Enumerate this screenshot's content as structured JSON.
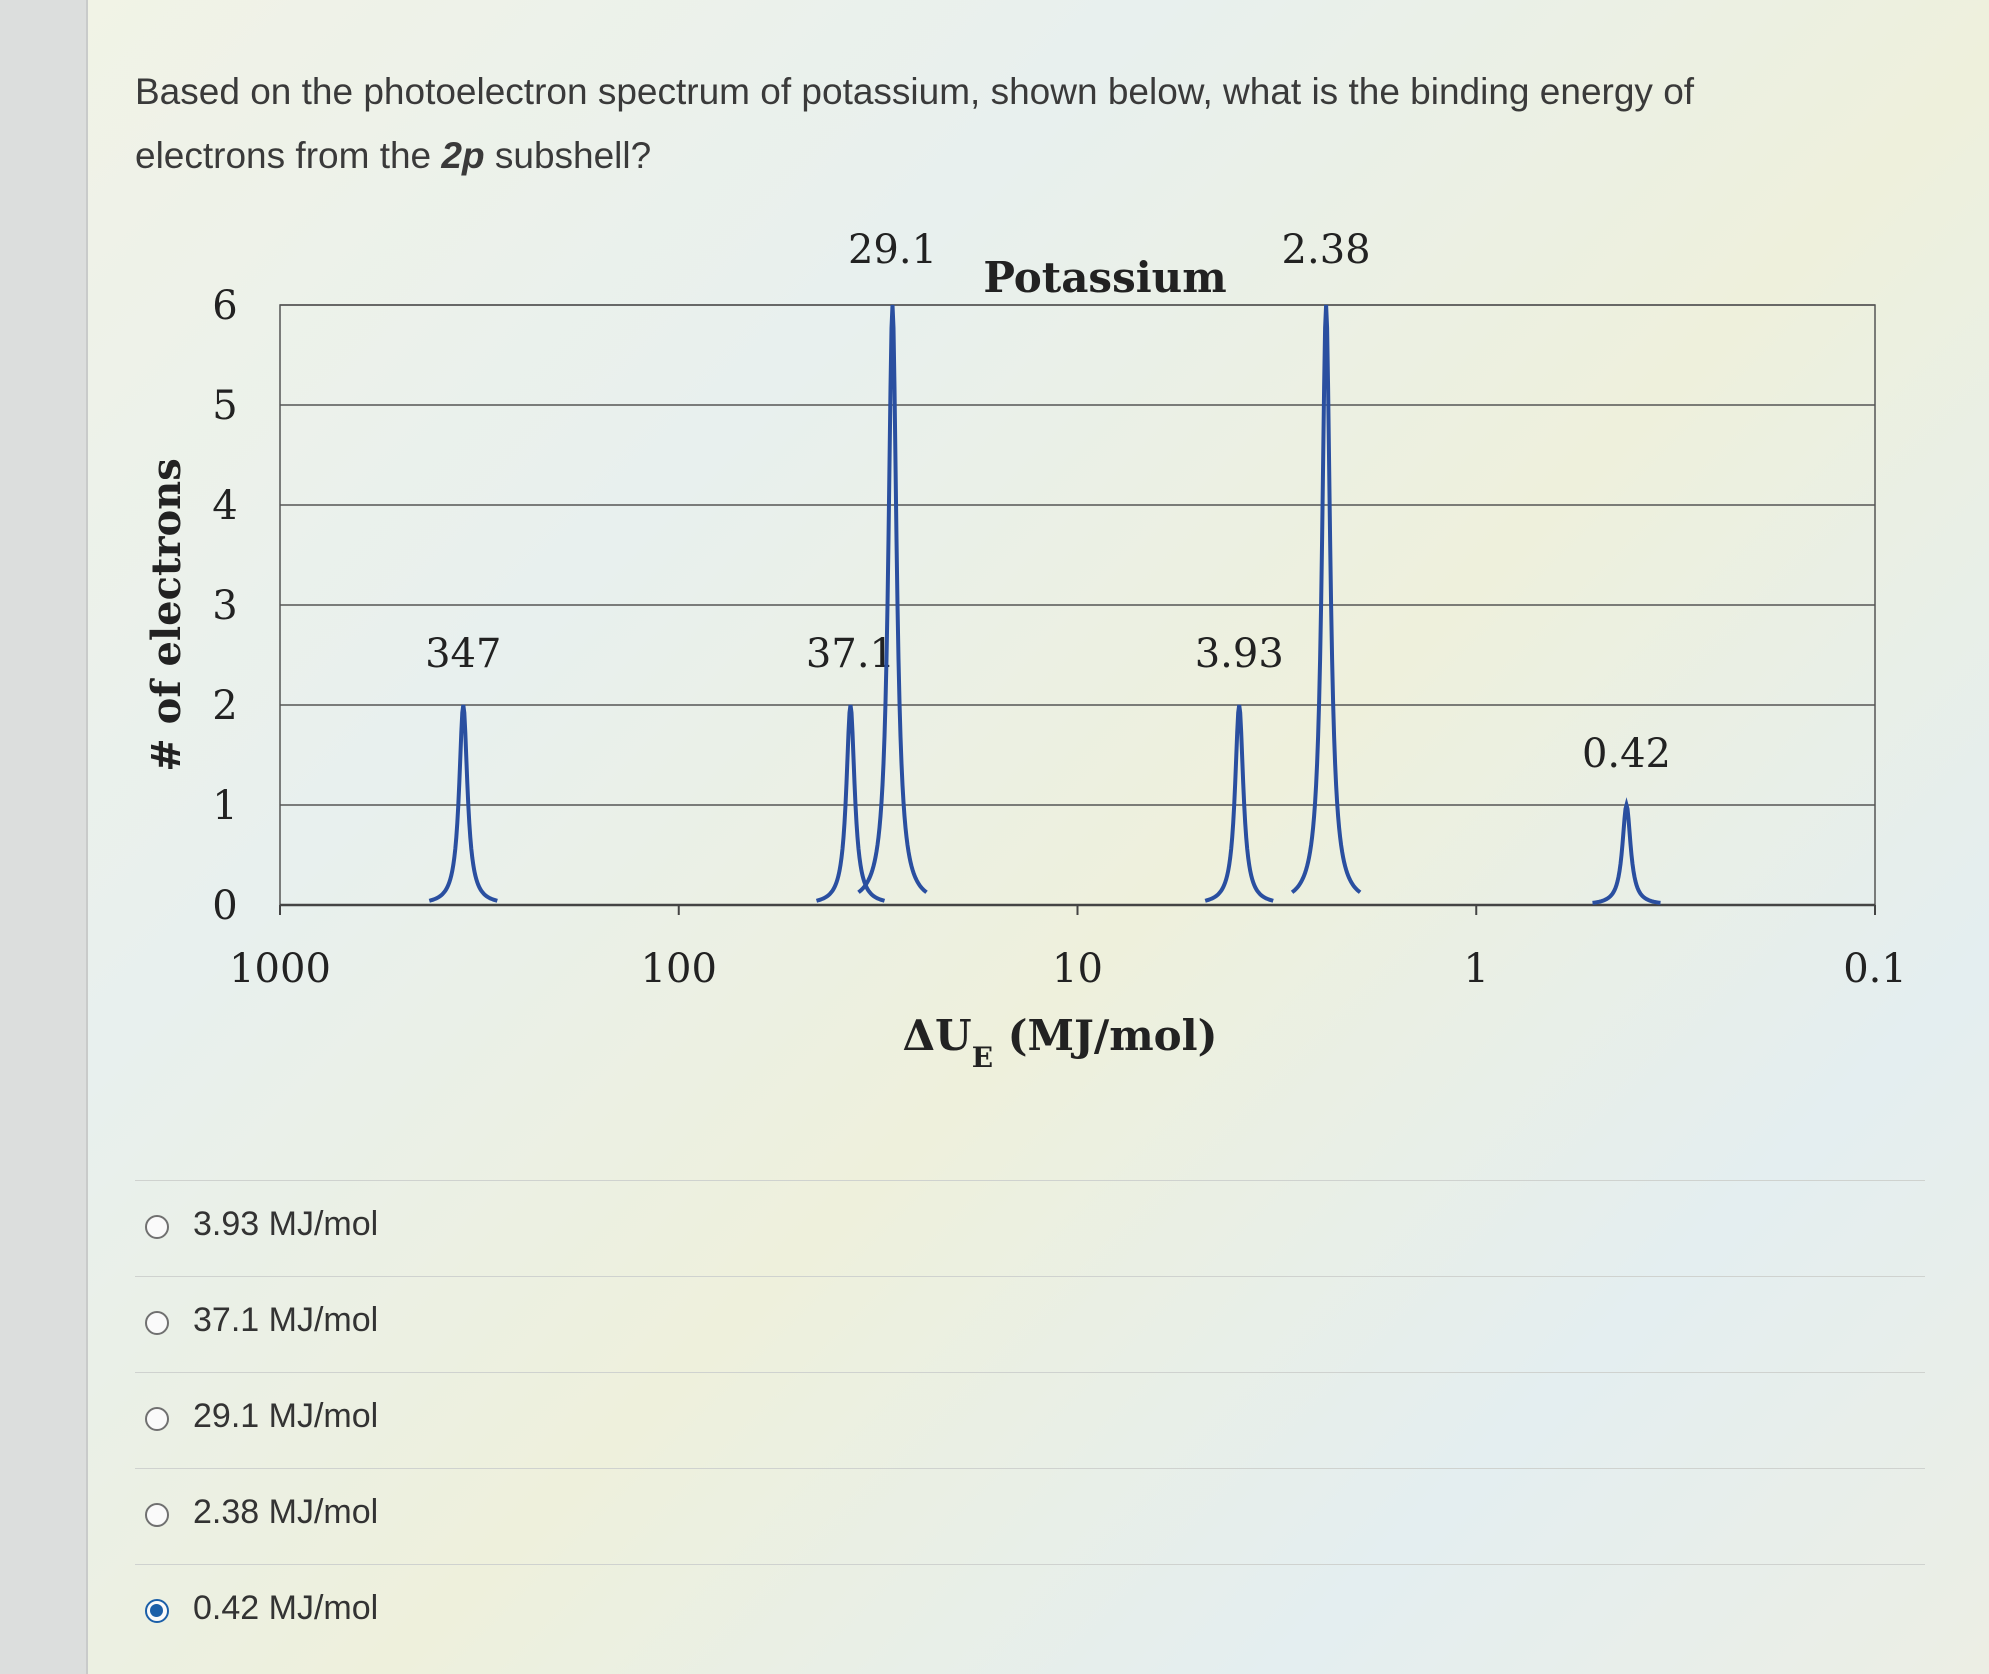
{
  "question": {
    "prefix": "Based on the photoelectron spectrum of potassium, shown below, what is the binding energy of electrons from the ",
    "emphasis": "2p",
    "suffix": " subshell?"
  },
  "chart_data": {
    "type": "line",
    "title": "Potassium",
    "xlabel_main": "ΔU",
    "xlabel_sub": "E",
    "xlabel_unit": " (MJ/mol)",
    "ylabel": "# of electrons",
    "x_scale": "log",
    "x_reversed": true,
    "xlim": [
      1000,
      0.1
    ],
    "ylim": [
      0,
      6
    ],
    "x_ticks": [
      1000,
      100,
      10,
      1,
      0.1
    ],
    "x_tick_labels": [
      "1000",
      "100",
      "10",
      "1",
      "0.1"
    ],
    "y_ticks": [
      0,
      1,
      2,
      3,
      4,
      5,
      6
    ],
    "y_tick_labels": [
      "0",
      "1",
      "2",
      "3",
      "4",
      "5",
      "6"
    ],
    "grid": "horizontal",
    "peaks": [
      {
        "energy": 347,
        "electrons": 2,
        "label": "347"
      },
      {
        "energy": 37.1,
        "electrons": 2,
        "label": "37.1"
      },
      {
        "energy": 29.1,
        "electrons": 6,
        "label": "29.1"
      },
      {
        "energy": 3.93,
        "electrons": 2,
        "label": "3.93"
      },
      {
        "energy": 2.38,
        "electrons": 6,
        "label": "2.38"
      },
      {
        "energy": 0.42,
        "electrons": 1,
        "label": "0.42"
      }
    ],
    "line_color": "#2a4fa0"
  },
  "options": [
    {
      "label": "3.93 MJ/mol",
      "selected": false
    },
    {
      "label": "37.1 MJ/mol",
      "selected": false
    },
    {
      "label": "29.1 MJ/mol",
      "selected": false
    },
    {
      "label": "2.38 MJ/mol",
      "selected": false
    },
    {
      "label": "0.42 MJ/mol",
      "selected": true
    }
  ]
}
